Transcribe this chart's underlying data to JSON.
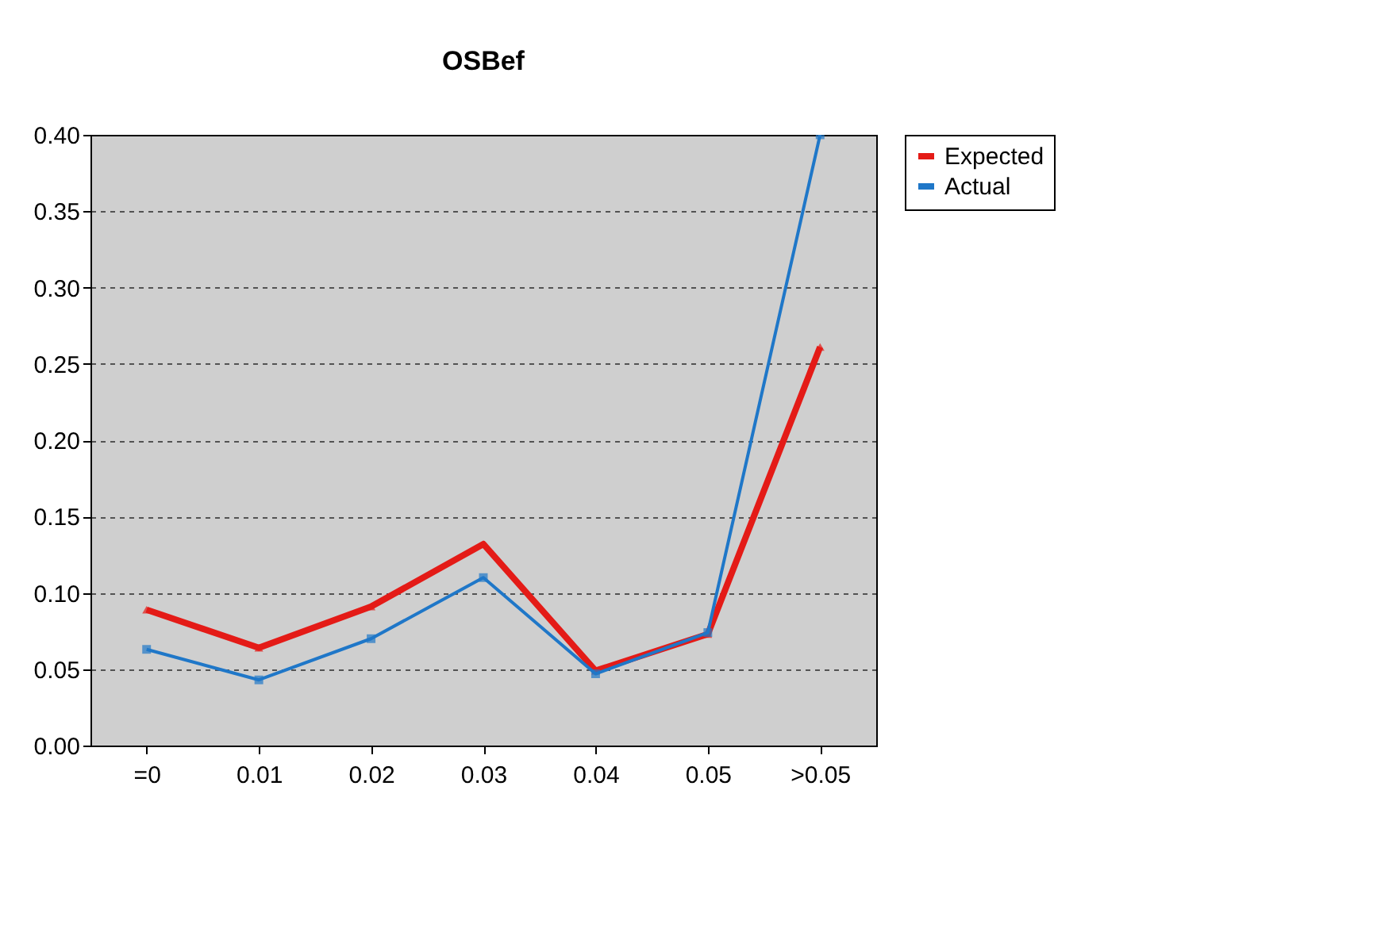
{
  "chart_data": {
    "type": "line",
    "title": "OSBef",
    "categories": [
      "=0",
      "0.01",
      "0.02",
      "0.03",
      "0.04",
      "0.05",
      ">0.05"
    ],
    "series": [
      {
        "name": "Expected",
        "color": "#e41b17",
        "values": [
          0.089,
          0.064,
          0.091,
          0.132,
          0.049,
          0.073,
          0.261
        ],
        "marker": "triangle"
      },
      {
        "name": "Actual",
        "color": "#1f77c8",
        "values": [
          0.063,
          0.043,
          0.07,
          0.11,
          0.047,
          0.074,
          0.4
        ],
        "marker": "square"
      }
    ],
    "ylim": [
      0,
      0.4
    ],
    "yticks": [
      {
        "value": 0,
        "label": "0.00"
      },
      {
        "value": 0.05,
        "label": "0.05"
      },
      {
        "value": 0.1,
        "label": "0.10"
      },
      {
        "value": 0.15,
        "label": "0.15"
      },
      {
        "value": 0.2,
        "label": "0.20"
      },
      {
        "value": 0.25,
        "label": "0.25"
      },
      {
        "value": 0.3,
        "label": "0.30"
      },
      {
        "value": 0.35,
        "label": "0.35"
      },
      {
        "value": 0.4,
        "label": "0.40"
      }
    ],
    "grid": "y",
    "legend": "right",
    "line_style": "solid"
  }
}
